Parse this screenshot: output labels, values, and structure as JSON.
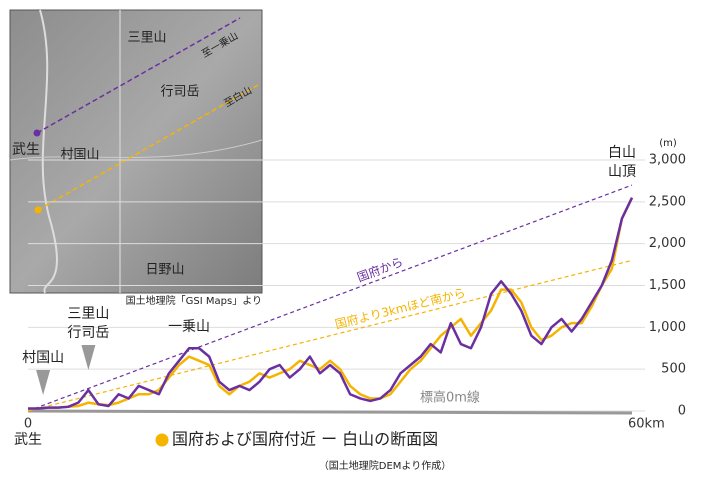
{
  "chart_data": {
    "type": "line",
    "title": "国府および国府付近 ー 白山の断面図",
    "subtitle": "（国土地理院DEMより作成）",
    "y_unit": "(m)",
    "start_label": "武生",
    "x": [
      0,
      1,
      2,
      3,
      4,
      5,
      6,
      7,
      8,
      9,
      10,
      11,
      12,
      13,
      14,
      15,
      16,
      17,
      18,
      19,
      20,
      21,
      22,
      23,
      24,
      25,
      26,
      27,
      28,
      29,
      30,
      31,
      32,
      33,
      34,
      35,
      36,
      37,
      38,
      39,
      40,
      41,
      42,
      43,
      44,
      45,
      46,
      47,
      48,
      49,
      50,
      51,
      52,
      53,
      54,
      55,
      56,
      57,
      58,
      59,
      60
    ],
    "series": [
      {
        "color": "#f5b400",
        "values": [
          20,
          30,
          40,
          40,
          50,
          60,
          100,
          80,
          70,
          100,
          150,
          200,
          200,
          250,
          400,
          550,
          650,
          600,
          550,
          300,
          200,
          300,
          350,
          450,
          400,
          450,
          500,
          600,
          550,
          500,
          600,
          500,
          300,
          200,
          150,
          150,
          200,
          350,
          500,
          600,
          750,
          900,
          1000,
          1100,
          900,
          1050,
          1200,
          1450,
          1450,
          1300,
          1000,
          850,
          900,
          1000,
          1050,
          1050,
          1250,
          1500,
          1700,
          2300,
          2550
        ]
      },
      {
        "color": "#6a2fa0",
        "values": [
          30,
          30,
          40,
          40,
          50,
          100,
          250,
          80,
          60,
          200,
          150,
          300,
          250,
          200,
          450,
          600,
          750,
          750,
          650,
          350,
          250,
          300,
          250,
          350,
          500,
          550,
          400,
          500,
          650,
          450,
          550,
          450,
          200,
          150,
          120,
          150,
          250,
          450,
          550,
          650,
          800,
          700,
          1050,
          800,
          750,
          1000,
          1400,
          1550,
          1400,
          1200,
          900,
          800,
          1000,
          1100,
          950,
          1100,
          1300,
          1500,
          1800,
          2300,
          2550
        ]
      }
    ],
    "reference_lines": [
      {
        "label": "国府から",
        "color": "#6a2fa0",
        "x": [
          0,
          60
        ],
        "values": [
          0,
          2700
        ],
        "label_x": 35
      },
      {
        "label": "国府より3kmほど南から",
        "color": "#f5b400",
        "x": [
          0,
          60
        ],
        "values": [
          0,
          1800
        ],
        "label_x": 37
      }
    ],
    "sea_level_label": "標高0m線",
    "annotations": [
      {
        "lines": [
          "村国山"
        ],
        "x": 1.5,
        "marker": true
      },
      {
        "lines": [
          "三里山",
          "行司岳"
        ],
        "x": 6,
        "marker": true
      },
      {
        "lines": [
          "一乗山"
        ],
        "x": 16,
        "marker": false
      },
      {
        "lines": [
          "白山",
          "山頂"
        ],
        "x": 60,
        "marker": false
      }
    ],
    "xlim": [
      0,
      60
    ],
    "xticks": [
      0,
      {
        "value": 60,
        "label": "60km"
      }
    ],
    "ylim": [
      0,
      3000
    ],
    "yticks": [
      0,
      500,
      {
        "value": 1000,
        "label": "1,000"
      },
      {
        "value": 1500,
        "label": "1,500"
      },
      {
        "value": 2000,
        "label": "2,000"
      },
      {
        "value": 2500,
        "label": "2,500"
      },
      {
        "value": 3000,
        "label": "3,000"
      }
    ],
    "grid": true
  },
  "map": {
    "labels": [
      "三里山",
      "至一乗山",
      "行司岳",
      "至白山",
      "武生",
      "村国山",
      "日野山"
    ],
    "credit": "国土地理院「GSI Maps」より"
  }
}
